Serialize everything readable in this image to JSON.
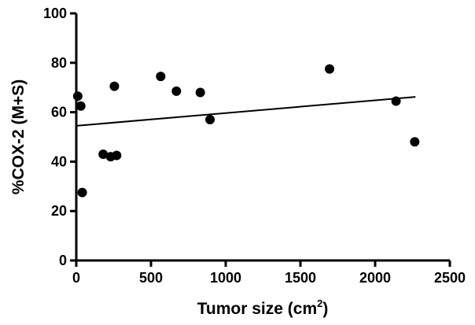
{
  "chart_data": {
    "type": "scatter",
    "xlabel": "Tumor size (cm",
    "xlabel_sup": "2",
    "xlabel_suffix": ")",
    "ylabel": "%COX-2 (M+S)",
    "xlim": [
      0,
      2500
    ],
    "ylim": [
      0,
      100
    ],
    "xticks": [
      0,
      500,
      1000,
      1500,
      2000,
      2500
    ],
    "yticks": [
      0,
      20,
      40,
      60,
      80,
      100
    ],
    "grid": false,
    "points": [
      {
        "x": 10,
        "y": 66.5
      },
      {
        "x": 30,
        "y": 62.5
      },
      {
        "x": 40,
        "y": 27.5
      },
      {
        "x": 180,
        "y": 43
      },
      {
        "x": 230,
        "y": 42
      },
      {
        "x": 255,
        "y": 70.5
      },
      {
        "x": 270,
        "y": 42.5
      },
      {
        "x": 565,
        "y": 74.5
      },
      {
        "x": 670,
        "y": 68.5
      },
      {
        "x": 830,
        "y": 68
      },
      {
        "x": 895,
        "y": 57
      },
      {
        "x": 1695,
        "y": 77.5
      },
      {
        "x": 2140,
        "y": 64.5
      },
      {
        "x": 2265,
        "y": 48
      }
    ],
    "fit_line": {
      "x": [
        0,
        2270
      ],
      "y": [
        54.5,
        66.2
      ]
    }
  }
}
